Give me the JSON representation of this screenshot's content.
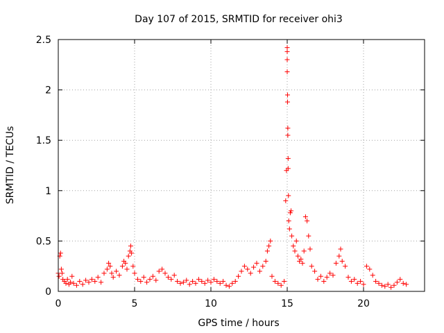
{
  "chart_data": {
    "type": "scatter",
    "title": "Day 107 of 2015, SRMTID for receiver ohi3",
    "xlabel": "GPS time / hours",
    "ylabel": "SRMTID / TECUs",
    "xlim": [
      0,
      24
    ],
    "ylim": [
      0,
      2.5
    ],
    "grid": true,
    "marker": "+",
    "color": "#ff0000",
    "xticks": [
      0,
      5,
      10,
      15,
      20
    ],
    "xtick_labels": [
      "0",
      "5",
      "10",
      "15",
      "20"
    ],
    "yticks": [
      0,
      0.5,
      1,
      1.5,
      2,
      2.5
    ],
    "ytick_labels": [
      "0",
      "0.5",
      "1",
      "1.5",
      "2",
      "2.5"
    ],
    "series": [
      {
        "name": "SRMTID",
        "x": [
          0.0,
          0.05,
          0.1,
          0.15,
          0.2,
          0.25,
          0.3,
          0.4,
          0.5,
          0.6,
          0.7,
          0.8,
          0.9,
          1.0,
          1.2,
          1.4,
          1.6,
          1.8,
          2.0,
          2.2,
          2.4,
          2.6,
          2.8,
          3.0,
          3.2,
          3.3,
          3.4,
          3.5,
          3.6,
          3.8,
          4.0,
          4.2,
          4.3,
          4.4,
          4.5,
          4.6,
          4.7,
          4.75,
          4.8,
          4.9,
          5.0,
          5.2,
          5.4,
          5.6,
          5.8,
          6.0,
          6.2,
          6.4,
          6.6,
          6.8,
          7.0,
          7.2,
          7.4,
          7.6,
          7.8,
          8.0,
          8.2,
          8.4,
          8.6,
          8.8,
          9.0,
          9.2,
          9.4,
          9.6,
          9.8,
          10.0,
          10.2,
          10.4,
          10.6,
          10.8,
          11.0,
          11.2,
          11.4,
          11.6,
          11.8,
          12.0,
          12.2,
          12.4,
          12.6,
          12.8,
          13.0,
          13.2,
          13.4,
          13.6,
          13.7,
          13.8,
          13.9,
          14.0,
          14.2,
          14.4,
          14.6,
          14.8,
          14.9,
          14.95,
          15.0,
          15.0,
          15.0,
          15.0,
          15.02,
          15.02,
          15.04,
          15.04,
          15.06,
          15.06,
          15.08,
          15.1,
          15.15,
          15.2,
          15.25,
          15.3,
          15.4,
          15.5,
          15.6,
          15.7,
          15.8,
          15.9,
          16.0,
          16.1,
          16.2,
          16.3,
          16.4,
          16.5,
          16.6,
          16.8,
          17.0,
          17.2,
          17.4,
          17.6,
          17.8,
          18.0,
          18.2,
          18.4,
          18.5,
          18.6,
          18.8,
          19.0,
          19.2,
          19.4,
          19.6,
          19.8,
          20.0,
          20.2,
          20.4,
          20.6,
          20.8,
          21.0,
          21.2,
          21.4,
          21.6,
          21.8,
          22.0,
          22.2,
          22.4,
          22.6,
          22.8
        ],
        "y": [
          0.18,
          0.15,
          0.35,
          0.38,
          0.22,
          0.18,
          0.12,
          0.1,
          0.08,
          0.12,
          0.07,
          0.09,
          0.15,
          0.08,
          0.06,
          0.1,
          0.07,
          0.11,
          0.09,
          0.12,
          0.1,
          0.14,
          0.09,
          0.18,
          0.22,
          0.28,
          0.25,
          0.18,
          0.14,
          0.2,
          0.16,
          0.25,
          0.3,
          0.28,
          0.22,
          0.35,
          0.4,
          0.45,
          0.38,
          0.25,
          0.18,
          0.12,
          0.1,
          0.14,
          0.09,
          0.12,
          0.15,
          0.11,
          0.2,
          0.22,
          0.18,
          0.14,
          0.12,
          0.16,
          0.1,
          0.08,
          0.09,
          0.11,
          0.07,
          0.1,
          0.08,
          0.12,
          0.1,
          0.08,
          0.11,
          0.09,
          0.12,
          0.1,
          0.08,
          0.1,
          0.06,
          0.05,
          0.08,
          0.1,
          0.15,
          0.2,
          0.25,
          0.22,
          0.18,
          0.24,
          0.28,
          0.2,
          0.25,
          0.3,
          0.4,
          0.45,
          0.5,
          0.15,
          0.1,
          0.08,
          0.06,
          0.1,
          0.9,
          1.2,
          2.42,
          2.38,
          2.3,
          2.18,
          1.95,
          1.88,
          1.62,
          1.55,
          1.32,
          1.22,
          0.95,
          0.7,
          0.62,
          0.78,
          0.8,
          0.55,
          0.45,
          0.4,
          0.5,
          0.35,
          0.3,
          0.32,
          0.28,
          0.4,
          0.74,
          0.7,
          0.55,
          0.42,
          0.25,
          0.2,
          0.12,
          0.15,
          0.1,
          0.14,
          0.18,
          0.16,
          0.28,
          0.35,
          0.42,
          0.3,
          0.25,
          0.14,
          0.1,
          0.12,
          0.08,
          0.1,
          0.07,
          0.25,
          0.22,
          0.16,
          0.1,
          0.08,
          0.06,
          0.05,
          0.07,
          0.04,
          0.06,
          0.09,
          0.12,
          0.08,
          0.07
        ]
      }
    ]
  }
}
